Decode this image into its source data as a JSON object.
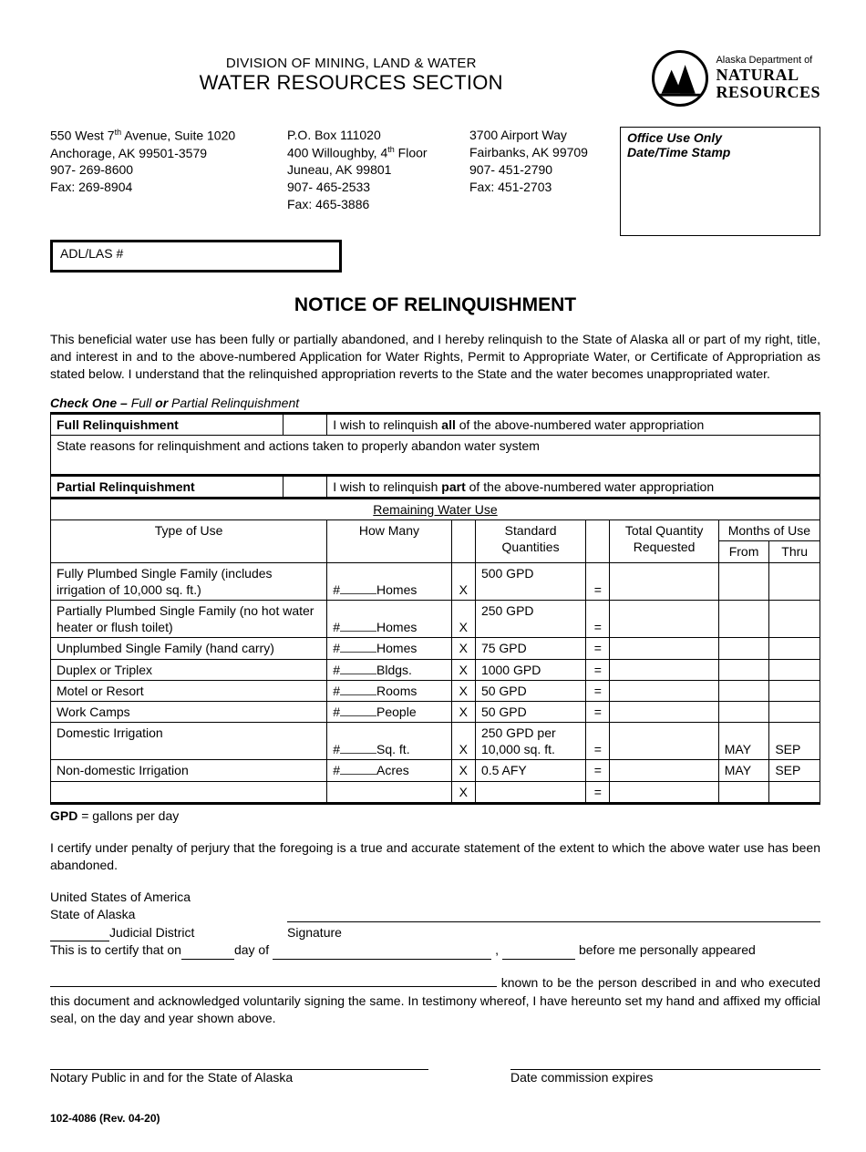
{
  "header": {
    "division": "DIVISION OF MINING, LAND & WATER",
    "section": "WATER RESOURCES SECTION",
    "logo": {
      "line1": "Alaska Department of",
      "line2": "NATURAL",
      "line3": "RESOURCES"
    }
  },
  "addresses": {
    "anchorage": {
      "line1a": "550 West 7",
      "line1b": " Avenue, Suite 1020",
      "sup": "th",
      "line2": "Anchorage, AK 99501-3579",
      "phone": "907- 269-8600",
      "fax": "Fax: 269-8904"
    },
    "juneau": {
      "line1": "P.O. Box 111020",
      "line2a": "400 Willoughby, 4",
      "sup": "th",
      "line2b": " Floor",
      "line3": "Juneau, AK 99801",
      "phone": "907- 465-2533",
      "fax": "Fax: 465-3886"
    },
    "fairbanks": {
      "line1": "3700 Airport Way",
      "line2": "Fairbanks, AK  99709",
      "phone": "907- 451-2790",
      "fax": "Fax: 451-2703"
    }
  },
  "office_use": {
    "title": "Office Use Only",
    "stamp": "Date/Time Stamp"
  },
  "adl_label": "ADL/LAS #",
  "main_title": "NOTICE OF RELINQUISHMENT",
  "intro": "This beneficial water use has been fully or partially abandoned, and I hereby relinquish to the State of Alaska all or part of my right, title, and interest in and to the above-numbered Application for Water Rights, Permit to Appropriate Water, or Certificate of Appropriation as stated below.  I understand that the relinquished appropriation reverts to the State and the water becomes unappropriated water.",
  "check_one": {
    "prefix": "Check One – ",
    "body": "Full ",
    "or": "or",
    "suffix": " Partial Relinquishment"
  },
  "full": {
    "label": "Full Relinquishment",
    "text_a": "I wish to relinquish ",
    "text_b": "all",
    "text_c": " of the above-numbered water appropriation"
  },
  "reasons_label": "State reasons for relinquishment and actions taken to properly abandon water system",
  "partial": {
    "label": "Partial Relinquishment",
    "text_a": "I wish to relinquish ",
    "text_b": "part",
    "text_c": " of the above-numbered water appropriation"
  },
  "remaining_hdr": "Remaining Water Use",
  "columns": {
    "type": "Type of Use",
    "how_many": "How Many",
    "standard": "Standard Quantities",
    "total_qty": "Total Quantity Requested",
    "months": "Months of Use",
    "from": "From",
    "thru": "Thru"
  },
  "rows": [
    {
      "type": "Fully Plumbed Single Family (includes irrigation of 10,000 sq. ft.)",
      "unit": "Homes",
      "std": "500 GPD",
      "from": "",
      "thru": ""
    },
    {
      "type": "Partially Plumbed Single Family (no hot water heater or flush toilet)",
      "unit": "Homes",
      "std": "250 GPD",
      "from": "",
      "thru": ""
    },
    {
      "type": "Unplumbed Single Family (hand carry)",
      "unit": "Homes",
      "std": "75 GPD",
      "from": "",
      "thru": ""
    },
    {
      "type": "Duplex or Triplex",
      "unit": "Bldgs.",
      "std": "1000 GPD",
      "from": "",
      "thru": ""
    },
    {
      "type": "Motel or Resort",
      "unit": "Rooms",
      "std": "50 GPD",
      "from": "",
      "thru": ""
    },
    {
      "type": "Work Camps",
      "unit": "People",
      "std": "50 GPD",
      "from": "",
      "thru": ""
    },
    {
      "type": "Domestic Irrigation",
      "unit": "Sq. ft.",
      "std": "250 GPD per 10,000 sq. ft.",
      "from": "MAY",
      "thru": "SEP"
    },
    {
      "type": "Non-domestic Irrigation",
      "unit": "Acres",
      "std": "0.5 AFY",
      "from": "MAY",
      "thru": "SEP"
    },
    {
      "type": "",
      "unit": "",
      "std": "",
      "from": "",
      "thru": ""
    }
  ],
  "gpd_note_a": "GPD",
  "gpd_note_b": " = gallons per day",
  "certify": "I certify under penalty of perjury that the foregoing is a true and accurate statement of the extent to which the above water use has been abandoned.",
  "sig": {
    "usa": "United States of America",
    "soa": "State of Alaska",
    "jd": "Judicial District",
    "signature": "Signature",
    "certify_that": "This is to certify that on ",
    "day_of": " day of ",
    "before_me": " before me personally appeared",
    "known": " known to be the person described in and who executed this document and acknowledged voluntarily signing the same.  In testimony whereof, I have hereunto set my hand and affixed my official seal, on the day and year shown above.",
    "notary": "Notary Public in and for the State of Alaska",
    "expires": "Date commission expires"
  },
  "form_id": "102-4086 (Rev. 04-20)",
  "x": "X",
  "eq": "=",
  "hash": "#"
}
